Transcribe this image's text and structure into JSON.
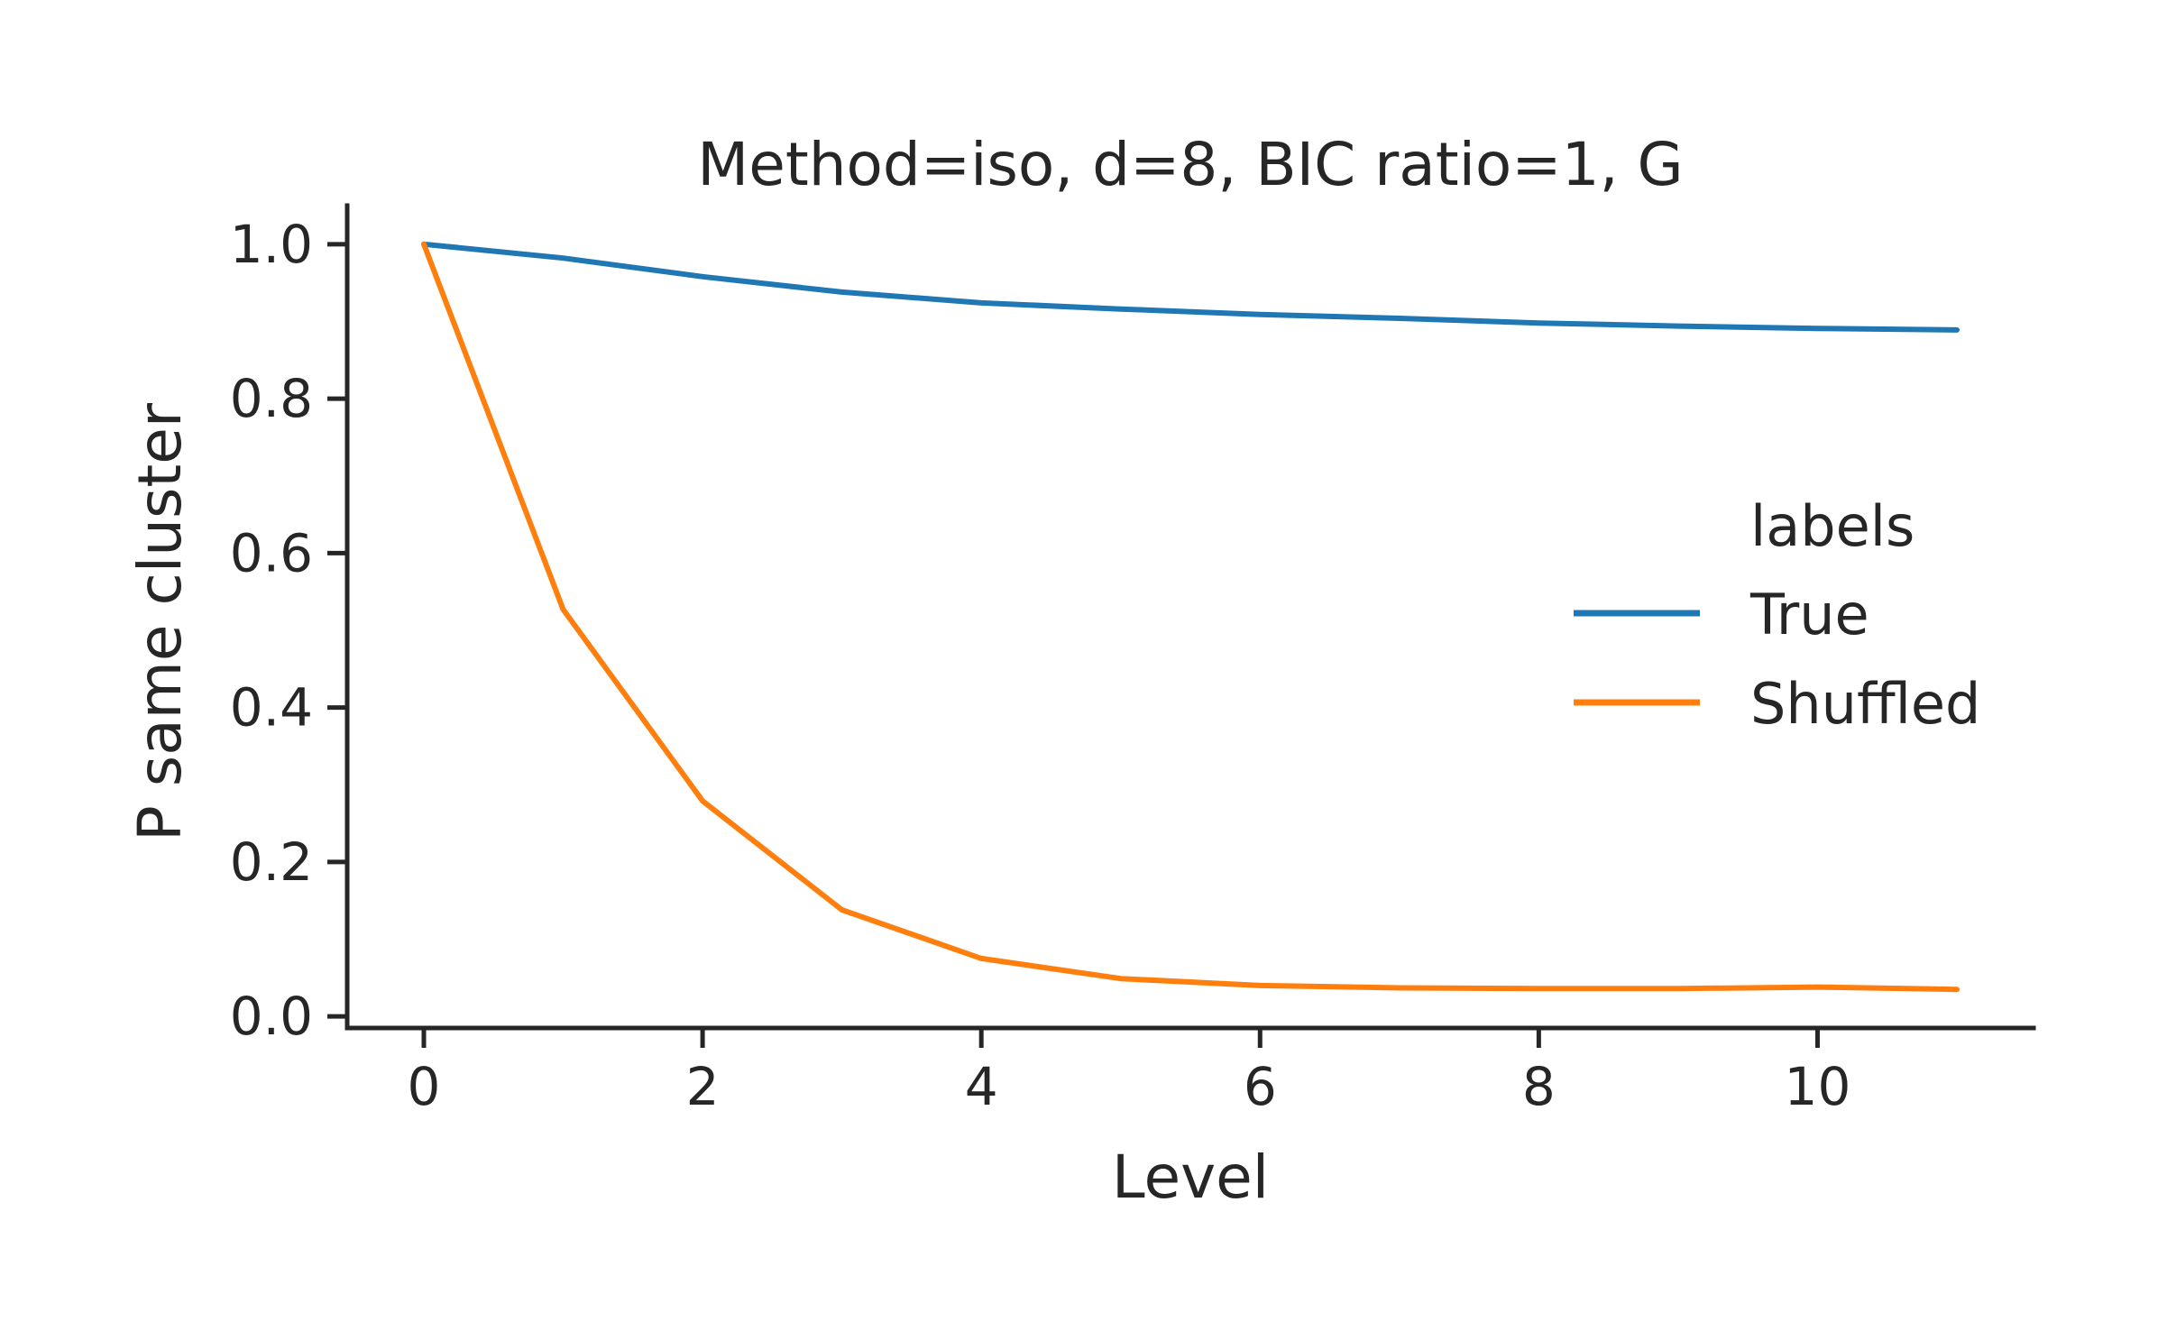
{
  "chart_data": {
    "type": "line",
    "title": "Method=iso, d=8, BIC ratio=1, G",
    "xlabel": "Level",
    "ylabel": "P same cluster",
    "xlim": [
      -0.55,
      11.55
    ],
    "ylim": [
      -0.015,
      1.05
    ],
    "xticks": [
      0,
      2,
      4,
      6,
      8,
      10
    ],
    "yticks": [
      0.0,
      0.2,
      0.4,
      0.6,
      0.8,
      1.0
    ],
    "xtick_labels": [
      "0",
      "2",
      "4",
      "6",
      "8",
      "10"
    ],
    "ytick_labels": [
      "0.0",
      "0.2",
      "0.4",
      "0.6",
      "0.8",
      "1.0"
    ],
    "grid": false,
    "legend": {
      "title": "labels",
      "placement": "center-right"
    },
    "x": [
      0,
      1,
      2,
      3,
      4,
      5,
      6,
      7,
      8,
      9,
      10,
      11
    ],
    "series": [
      {
        "name": "True",
        "color": "#1f77b4",
        "values": [
          1.0,
          0.982,
          0.958,
          0.938,
          0.924,
          0.916,
          0.909,
          0.904,
          0.898,
          0.894,
          0.891,
          0.889
        ]
      },
      {
        "name": "Shuffled",
        "color": "#ff7f0e",
        "values": [
          1.0,
          0.527,
          0.279,
          0.138,
          0.075,
          0.049,
          0.04,
          0.037,
          0.036,
          0.036,
          0.038,
          0.035
        ]
      }
    ]
  }
}
